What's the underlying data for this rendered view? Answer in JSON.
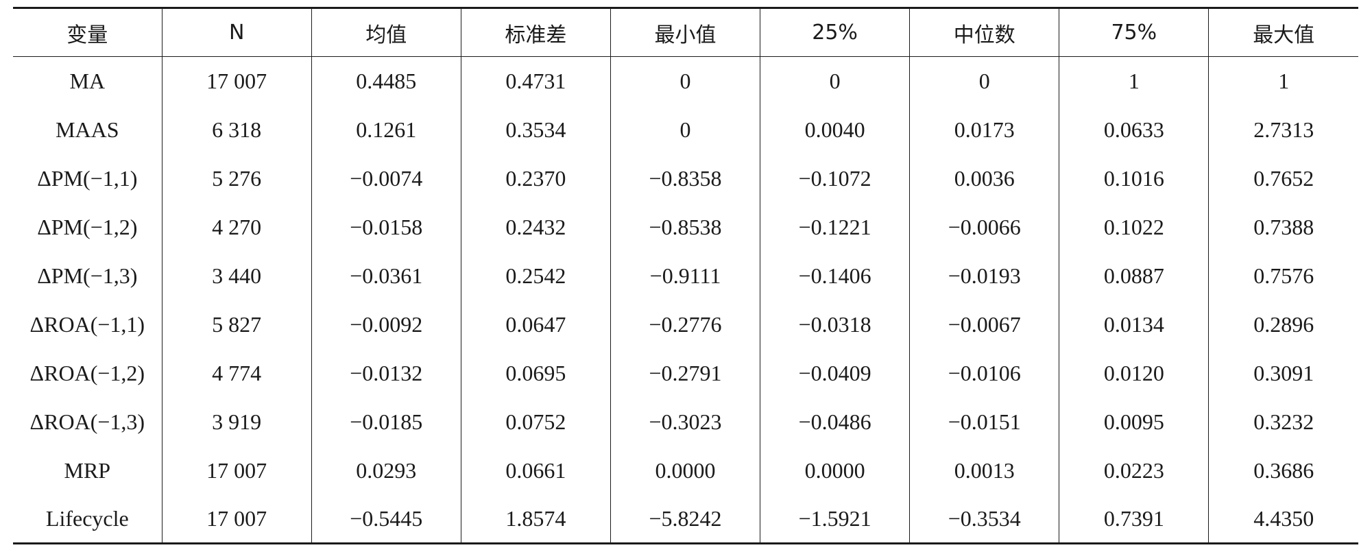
{
  "table": {
    "headers": [
      "变量",
      "N",
      "均值",
      "标准差",
      "最小值",
      "25%",
      "中位数",
      "75%",
      "最大值"
    ],
    "rows": [
      [
        "MA",
        "17 007",
        "0.4485",
        "0.4731",
        "0",
        "0",
        "0",
        "1",
        "1"
      ],
      [
        "MAAS",
        "6 318",
        "0.1261",
        "0.3534",
        "0",
        "0.0040",
        "0.0173",
        "0.0633",
        "2.7313"
      ],
      [
        "ΔPM(−1,1)",
        "5 276",
        "−0.0074",
        "0.2370",
        "−0.8358",
        "−0.1072",
        "0.0036",
        "0.1016",
        "0.7652"
      ],
      [
        "ΔPM(−1,2)",
        "4 270",
        "−0.0158",
        "0.2432",
        "−0.8538",
        "−0.1221",
        "−0.0066",
        "0.1022",
        "0.7388"
      ],
      [
        "ΔPM(−1,3)",
        "3 440",
        "−0.0361",
        "0.2542",
        "−0.9111",
        "−0.1406",
        "−0.0193",
        "0.0887",
        "0.7576"
      ],
      [
        "ΔROA(−1,1)",
        "5 827",
        "−0.0092",
        "0.0647",
        "−0.2776",
        "−0.0318",
        "−0.0067",
        "0.0134",
        "0.2896"
      ],
      [
        "ΔROA(−1,2)",
        "4 774",
        "−0.0132",
        "0.0695",
        "−0.2791",
        "−0.0409",
        "−0.0106",
        "0.0120",
        "0.3091"
      ],
      [
        "ΔROA(−1,3)",
        "3 919",
        "−0.0185",
        "0.0752",
        "−0.3023",
        "−0.0486",
        "−0.0151",
        "0.0095",
        "0.3232"
      ],
      [
        "MRP",
        "17 007",
        "0.0293",
        "0.0661",
        "0.0000",
        "0.0000",
        "0.0013",
        "0.0223",
        "0.3686"
      ],
      [
        "Lifecycle",
        "17 007",
        "−0.5445",
        "1.8574",
        "−5.8242",
        "−1.5921",
        "−0.3534",
        "0.7391",
        "4.4350"
      ]
    ]
  }
}
